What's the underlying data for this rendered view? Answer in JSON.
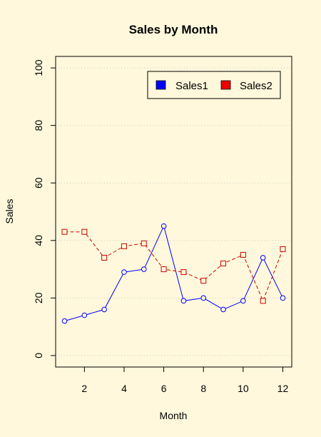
{
  "page": {
    "background": "#FFF8DC"
  },
  "chart_data": {
    "type": "line",
    "title": "Sales by Month",
    "xlabel": "Month",
    "ylabel": "Sales",
    "x": [
      1,
      2,
      3,
      4,
      5,
      6,
      7,
      8,
      9,
      10,
      11,
      12
    ],
    "xticks": [
      2,
      4,
      6,
      8,
      10,
      12
    ],
    "yticks": [
      0,
      20,
      40,
      60,
      80,
      100
    ],
    "xlim": [
      0.55,
      12.45
    ],
    "ylim": [
      -4,
      104
    ],
    "grid": {
      "horizontal": true,
      "style": "dotted"
    },
    "legend_position": "top-right",
    "series": [
      {
        "name": "Sales1",
        "values": [
          12,
          14,
          16,
          29,
          30,
          45,
          19,
          20,
          16,
          19,
          34,
          20
        ],
        "color": "#0000FF",
        "line": "solid",
        "marker": "circle"
      },
      {
        "name": "Sales2",
        "values": [
          43,
          43,
          34,
          38,
          39,
          30,
          29,
          26,
          32,
          35,
          19,
          37
        ],
        "color": "#CC0000",
        "line": "dashed",
        "marker": "square"
      }
    ]
  }
}
